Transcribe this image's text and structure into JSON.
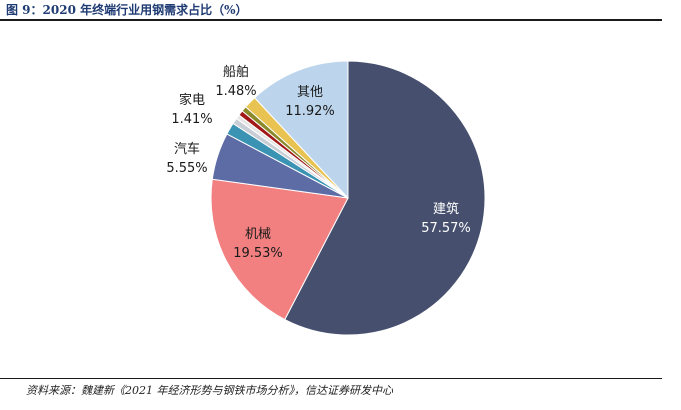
{
  "figure": {
    "title": "图 9：2020 年终端行业用钢需求占比（%）",
    "source": "资料来源：魏建新《2021 年经济形势与钢铁市场分析》，信达证券研发中心"
  },
  "chart_data": {
    "type": "pie",
    "title": "2020 年终端行业用钢需求占比（%）",
    "unit": "%",
    "slices": [
      {
        "name": "建筑",
        "value": 57.57,
        "value_label": "57.57%",
        "color": "#46506e",
        "label_color": "#ffffff"
      },
      {
        "name": "机械",
        "value": 19.53,
        "value_label": "19.53%",
        "color": "#f28080",
        "label_color": "#1a1a1a"
      },
      {
        "name": "汽车",
        "value": 5.55,
        "value_label": "5.55%",
        "color": "#5e6ca6",
        "label_color": "#1a1a1a"
      },
      {
        "name": "家电",
        "value": 1.41,
        "value_label": "1.41%",
        "color": "#3a93b2",
        "label_color": "#1a1a1a"
      },
      {
        "name": "",
        "value": 0.7,
        "value_label": "",
        "color": "#c9ced6",
        "label_color": "#1a1a1a"
      },
      {
        "name": "",
        "value": 0.5,
        "value_label": "",
        "color": "#e6e6e6",
        "label_color": "#1a1a1a"
      },
      {
        "name": "",
        "value": 0.6,
        "value_label": "",
        "color": "#a01818",
        "label_color": "#1a1a1a"
      },
      {
        "name": "",
        "value": 0.63,
        "value_label": "",
        "color": "#8a8a2a",
        "label_color": "#1a1a1a"
      },
      {
        "name": "船舶",
        "value": 1.48,
        "value_label": "1.48%",
        "color": "#e8c352",
        "label_color": "#1a1a1a"
      },
      {
        "name": "其他",
        "value": 11.92,
        "value_label": "11.92%",
        "color": "#bcd5ec",
        "label_color": "#1a1a1a"
      }
    ],
    "start_angle_deg": 0,
    "direction": "clockwise",
    "legend": "none"
  }
}
